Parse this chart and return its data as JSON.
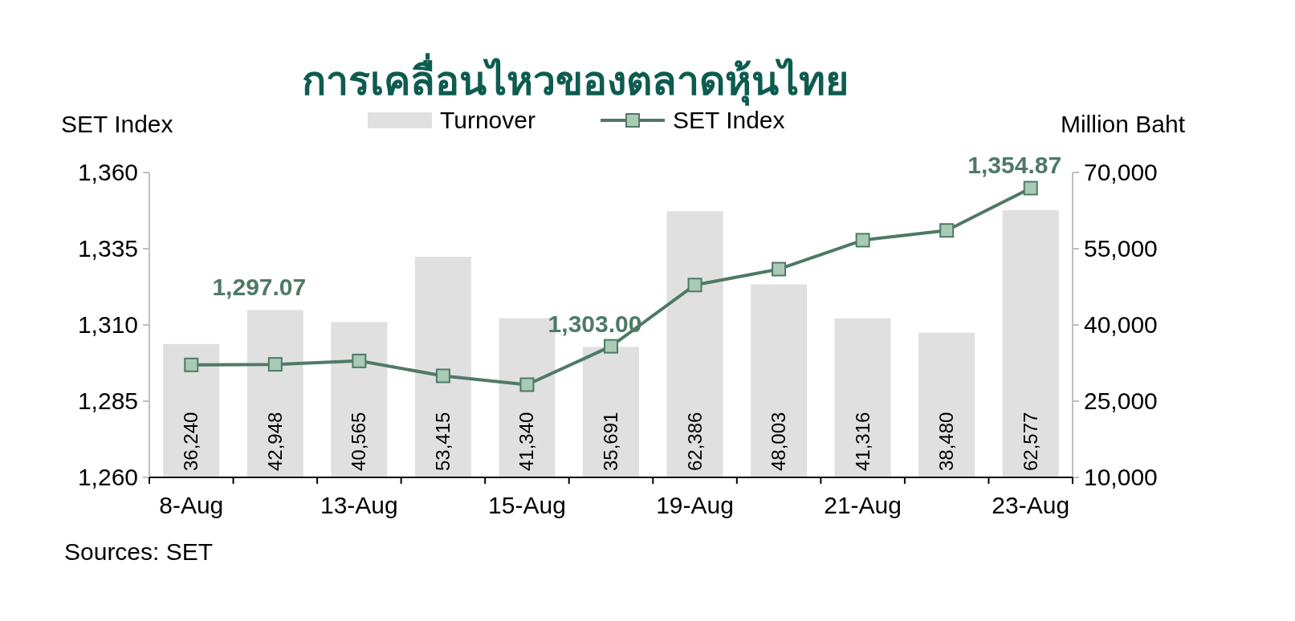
{
  "chart_data": {
    "type": "bar",
    "title": "การเคลื่อนไหวของตลาดหุ้นไทย",
    "ylabel": "SET Index",
    "y2label": "Million Baht",
    "categories": [
      "8-Aug",
      null,
      "13-Aug",
      null,
      "15-Aug",
      null,
      "19-Aug",
      null,
      "21-Aug",
      null,
      "23-Aug"
    ],
    "series": [
      {
        "name": "Turnover",
        "axis": "y2",
        "color": "#e0e0e0",
        "values": [
          36240,
          42948,
          40565,
          53415,
          41340,
          35691,
          62386,
          48003,
          41316,
          38480,
          62577
        ],
        "value_labels": [
          "36,240",
          "42,948",
          "40,565",
          "53,415",
          "41,340",
          "35,691",
          "62,386",
          "48,003",
          "41,316",
          "38,480",
          "62,577"
        ]
      },
      {
        "name": "SET Index",
        "type": "line",
        "axis": "y",
        "color": "#4e7a65",
        "marker": "square",
        "values": [
          1296.9,
          1297.07,
          1298.2,
          1293.3,
          1290.4,
          1303.0,
          1323.1,
          1328.3,
          1337.8,
          1341.0,
          1354.87
        ],
        "value_labels": [
          null,
          "1,297.07",
          null,
          null,
          null,
          "1,303.00",
          null,
          null,
          null,
          null,
          "1,354.87"
        ]
      }
    ],
    "ylim": [
      1260,
      1360
    ],
    "yticks": [
      {
        "value": 1260,
        "label": "1,260"
      },
      {
        "value": 1285,
        "label": "1,285"
      },
      {
        "value": 1310,
        "label": "1,310"
      },
      {
        "value": 1335,
        "label": "1,335"
      },
      {
        "value": 1360,
        "label": "1,360"
      }
    ],
    "y2lim": [
      10000,
      70000
    ],
    "y2ticks": [
      {
        "value": 10000,
        "label": "10,000"
      },
      {
        "value": 25000,
        "label": "25,000"
      },
      {
        "value": 40000,
        "label": "40,000"
      },
      {
        "value": 55000,
        "label": "55,000"
      },
      {
        "value": 70000,
        "label": "70,000"
      }
    ],
    "grid": false,
    "legend": "top",
    "annotations": [
      "Sources: SET"
    ]
  }
}
